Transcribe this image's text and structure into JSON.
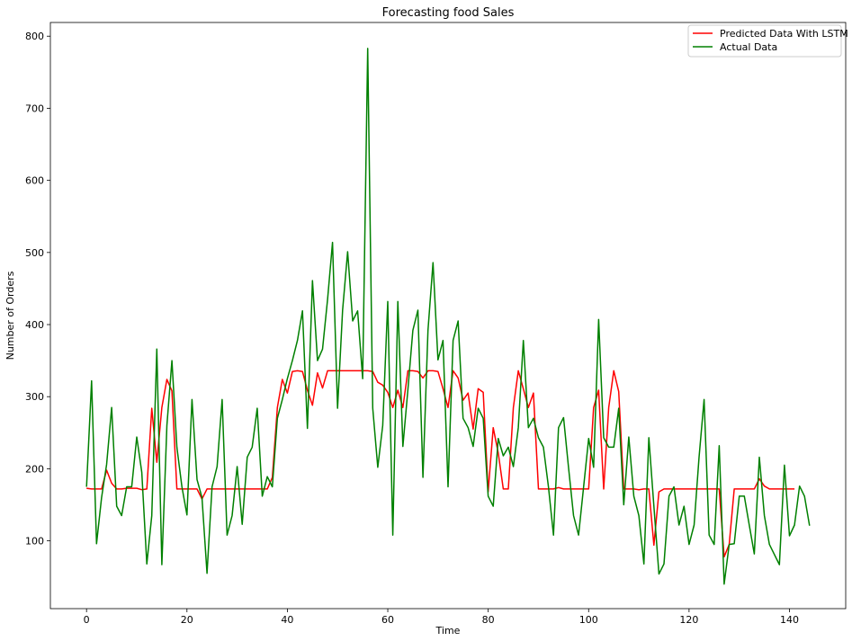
{
  "chart_data": {
    "type": "line",
    "title": "Forecasting food Sales",
    "xlabel": "Time",
    "ylabel": "Number of Orders",
    "xlim": [
      -7.2,
      151.2
    ],
    "ylim": [
      6,
      819
    ],
    "xticks": [
      0,
      20,
      40,
      60,
      80,
      100,
      120,
      140
    ],
    "yticks": [
      100,
      200,
      300,
      400,
      500,
      600,
      700,
      800
    ],
    "grid": false,
    "legend_position": "top-right",
    "series": [
      {
        "name": "Predicted Data With LSTM",
        "color": "#ff0000",
        "x": [
          0,
          1,
          2,
          3,
          4,
          5,
          6,
          7,
          8,
          9,
          10,
          11,
          12,
          13,
          14,
          15,
          16,
          17,
          18,
          19,
          20,
          21,
          22,
          23,
          24,
          25,
          26,
          27,
          28,
          29,
          30,
          31,
          32,
          33,
          34,
          35,
          36,
          37,
          38,
          39,
          40,
          41,
          42,
          43,
          44,
          45,
          46,
          47,
          48,
          49,
          50,
          51,
          52,
          53,
          54,
          55,
          56,
          57,
          58,
          59,
          60,
          61,
          62,
          63,
          64,
          65,
          66,
          67,
          68,
          69,
          70,
          71,
          72,
          73,
          74,
          75,
          76,
          77,
          78,
          79,
          80,
          81,
          82,
          83,
          84,
          85,
          86,
          87,
          88,
          89,
          90,
          91,
          92,
          93,
          94,
          95,
          96,
          97,
          98,
          99,
          100,
          101,
          102,
          103,
          104,
          105,
          106,
          107,
          108,
          109,
          110,
          111,
          112,
          113,
          114,
          115,
          116,
          117,
          118,
          119,
          120,
          121,
          122,
          123,
          124,
          125,
          126,
          127,
          128,
          129,
          130,
          131,
          132,
          133,
          134,
          135,
          136,
          137,
          138,
          139,
          140,
          141
        ],
        "values": [
          173,
          172,
          172,
          172,
          198,
          180,
          172,
          172,
          173,
          173,
          173,
          171,
          172,
          284,
          209,
          285,
          324,
          308,
          172,
          172,
          172,
          172,
          172,
          158,
          172,
          172,
          172,
          172,
          172,
          172,
          172,
          172,
          172,
          172,
          172,
          172,
          172,
          188,
          285,
          324,
          305,
          335,
          336,
          335,
          309,
          288,
          333,
          312,
          336,
          336,
          336,
          336,
          336,
          336,
          336,
          336,
          336,
          335,
          320,
          316,
          306,
          285,
          309,
          285,
          336,
          336,
          335,
          326,
          336,
          336,
          335,
          311,
          285,
          336,
          326,
          295,
          305,
          255,
          311,
          306,
          168,
          257,
          222,
          172,
          172,
          285,
          336,
          311,
          285,
          305,
          172,
          172,
          172,
          172,
          174,
          172,
          172,
          172,
          172,
          172,
          172,
          285,
          309,
          172,
          285,
          336,
          307,
          172,
          172,
          172,
          171,
          172,
          172,
          94,
          168,
          172,
          172,
          172,
          172,
          172,
          172,
          172,
          172,
          172,
          172,
          172,
          172,
          78,
          95,
          172,
          172,
          172,
          172,
          172,
          186,
          176,
          172,
          172,
          172,
          172,
          172,
          172
        ]
      },
      {
        "name": "Actual Data",
        "color": "#008000",
        "x": [
          0,
          1,
          2,
          3,
          4,
          5,
          6,
          7,
          8,
          9,
          10,
          11,
          12,
          13,
          14,
          15,
          16,
          17,
          18,
          19,
          20,
          21,
          22,
          23,
          24,
          25,
          26,
          27,
          28,
          29,
          30,
          31,
          32,
          33,
          34,
          35,
          36,
          37,
          38,
          39,
          40,
          41,
          42,
          43,
          44,
          45,
          46,
          47,
          48,
          49,
          50,
          51,
          52,
          53,
          54,
          55,
          56,
          57,
          58,
          59,
          60,
          61,
          62,
          63,
          64,
          65,
          66,
          67,
          68,
          69,
          70,
          71,
          72,
          73,
          74,
          75,
          76,
          77,
          78,
          79,
          80,
          81,
          82,
          83,
          84,
          85,
          86,
          87,
          88,
          89,
          90,
          91,
          92,
          93,
          94,
          95,
          96,
          97,
          98,
          99,
          100,
          101,
          102,
          103,
          104,
          105,
          106,
          107,
          108,
          109,
          110,
          111,
          112,
          113,
          114,
          115,
          116,
          117,
          118,
          119,
          120,
          121,
          122,
          123,
          124,
          125,
          126,
          127,
          128,
          129,
          130,
          131,
          132,
          133,
          134,
          135,
          136,
          137,
          138,
          139,
          140,
          141,
          142,
          143,
          144
        ],
        "values": [
          175,
          322,
          96,
          160,
          206,
          285,
          148,
          135,
          175,
          175,
          244,
          195,
          68,
          135,
          366,
          67,
          260,
          350,
          230,
          175,
          136,
          296,
          185,
          160,
          55,
          175,
          203,
          296,
          108,
          135,
          203,
          123,
          216,
          230,
          284,
          162,
          189,
          175,
          270,
          296,
          325,
          350,
          378,
          419,
          256,
          461,
          350,
          366,
          435,
          514,
          284,
          420,
          501,
          405,
          419,
          325,
          783,
          284,
          202,
          260,
          432,
          108,
          432,
          231,
          310,
          392,
          420,
          188,
          392,
          486,
          351,
          378,
          175,
          378,
          405,
          270,
          257,
          231,
          284,
          270,
          162,
          148,
          242,
          218,
          230,
          203,
          257,
          378,
          257,
          270,
          243,
          230,
          175,
          108,
          257,
          271,
          202,
          135,
          108,
          175,
          242,
          202,
          407,
          243,
          230,
          230,
          284,
          150,
          244,
          162,
          135,
          68,
          243,
          148,
          54,
          68,
          162,
          175,
          122,
          148,
          95,
          122,
          216,
          296,
          108,
          95,
          232,
          40,
          95,
          96,
          162,
          162,
          122,
          82,
          216,
          135,
          95,
          81,
          67,
          205,
          107,
          122,
          176,
          162,
          121
        ]
      }
    ]
  }
}
